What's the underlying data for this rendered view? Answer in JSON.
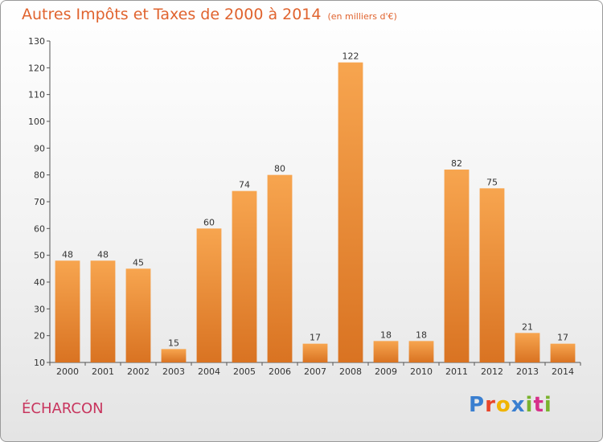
{
  "header": {
    "title": "Autres Impôts et Taxes de 2000 à 2014",
    "subtitle": "(en milliers d'€)"
  },
  "footer": {
    "commune": "ÉCHARCON",
    "logo_text": "Proxiti",
    "logo_colors": [
      "#3a7fd0",
      "#e8452a",
      "#f0b400",
      "#3a7fd0",
      "#7ab32e",
      "#d6308a",
      "#7ab32e"
    ]
  },
  "chart_data": {
    "type": "bar",
    "title": "Autres Impôts et Taxes de 2000 à 2014",
    "subtitle": "(en milliers d'€)",
    "xlabel": "",
    "ylabel": "",
    "categories": [
      "2000",
      "2001",
      "2002",
      "2003",
      "2004",
      "2005",
      "2006",
      "2007",
      "2008",
      "2009",
      "2010",
      "2011",
      "2012",
      "2013",
      "2014"
    ],
    "values": [
      48,
      48,
      45,
      15,
      60,
      74,
      80,
      17,
      122,
      18,
      18,
      82,
      75,
      21,
      17
    ],
    "ylim": [
      10,
      130
    ],
    "yticks": [
      10,
      20,
      30,
      40,
      50,
      60,
      70,
      80,
      90,
      100,
      110,
      120,
      130
    ],
    "grid": false,
    "data_labels": true,
    "colors": {
      "bar_light": "#f7a54f",
      "bar_dark": "#d97322",
      "axis": "#555555"
    }
  }
}
